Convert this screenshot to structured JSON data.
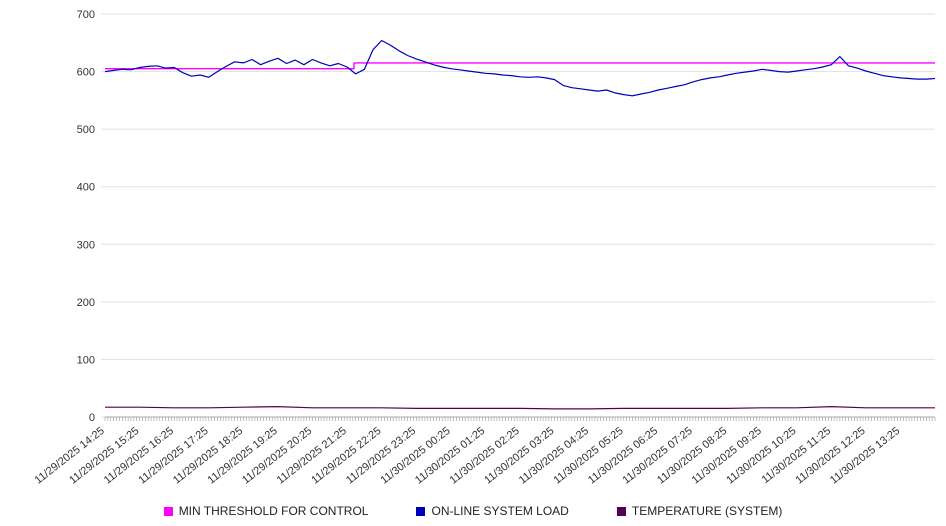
{
  "chart_data": {
    "type": "line",
    "title": "",
    "xlabel": "",
    "ylabel": "",
    "ylim": [
      0,
      700
    ],
    "ytick_step": 100,
    "y_tick_labels": [
      "0",
      "100",
      "200",
      "300",
      "400",
      "500",
      "600",
      "700"
    ],
    "grid": "horizontal",
    "legend_position": "bottom",
    "x_range_hours": 24,
    "x_minor_tick_minutes": 5,
    "x_tick_labels": [
      "11/29/2025 14:25",
      "11/29/2025 15:25",
      "11/29/2025 16:25",
      "11/29/2025 17:25",
      "11/29/2025 18:25",
      "11/29/2025 19:25",
      "11/29/2025 20:25",
      "11/29/2025 21:25",
      "11/29/2025 22:25",
      "11/29/2025 23:25",
      "11/30/2025 00:25",
      "11/30/2025 01:25",
      "11/30/2025 02:25",
      "11/30/2025 03:25",
      "11/30/2025 04:25",
      "11/30/2025 05:25",
      "11/30/2025 06:25",
      "11/30/2025 07:25",
      "11/30/2025 08:25",
      "11/30/2025 09:25",
      "11/30/2025 10:25",
      "11/30/2025 11:25",
      "11/30/2025 12:25",
      "11/30/2025 13:25"
    ],
    "series": [
      {
        "name": "MIN THRESHOLD FOR CONTROL",
        "color": "#ff00ff",
        "width": 1.4,
        "step_at_hours": 7.2,
        "before": 605,
        "after": 615
      },
      {
        "name": "ON-LINE SYSTEM LOAD",
        "color": "#0000bb",
        "width": 1.2,
        "interval_minutes": 15,
        "values": [
          600,
          602,
          604,
          603,
          607,
          609,
          610,
          606,
          607,
          598,
          592,
          594,
          590,
          600,
          609,
          617,
          615,
          621,
          612,
          618,
          623,
          614,
          620,
          612,
          621,
          615,
          610,
          614,
          608,
          596,
          604,
          638,
          654,
          646,
          636,
          628,
          622,
          617,
          612,
          608,
          605,
          603,
          601,
          599,
          597,
          596,
          594,
          593,
          591,
          590,
          591,
          589,
          586,
          576,
          572,
          570,
          568,
          566,
          568,
          563,
          560,
          558,
          561,
          564,
          568,
          571,
          574,
          577,
          582,
          586,
          589,
          591,
          594,
          597,
          599,
          601,
          604,
          602,
          600,
          599,
          601,
          603,
          605,
          608,
          612,
          626,
          610,
          606,
          601,
          597,
          593,
          591,
          589,
          588,
          587,
          587,
          588
        ]
      },
      {
        "name": "TEMPERATURE (SYSTEM)",
        "color": "#550055",
        "width": 1.2,
        "interval_minutes": 60,
        "values": [
          17,
          17,
          16,
          16,
          17,
          18,
          16,
          16,
          16,
          15,
          15,
          15,
          15,
          14,
          14,
          15,
          15,
          15,
          15,
          16,
          16,
          18,
          16,
          16,
          16
        ]
      }
    ]
  },
  "legend": {
    "items": [
      {
        "label": "MIN THRESHOLD FOR CONTROL",
        "color": "#ff00ff"
      },
      {
        "label": "ON-LINE SYSTEM LOAD",
        "color": "#0000bb"
      },
      {
        "label": "TEMPERATURE (SYSTEM)",
        "color": "#550055"
      }
    ]
  }
}
